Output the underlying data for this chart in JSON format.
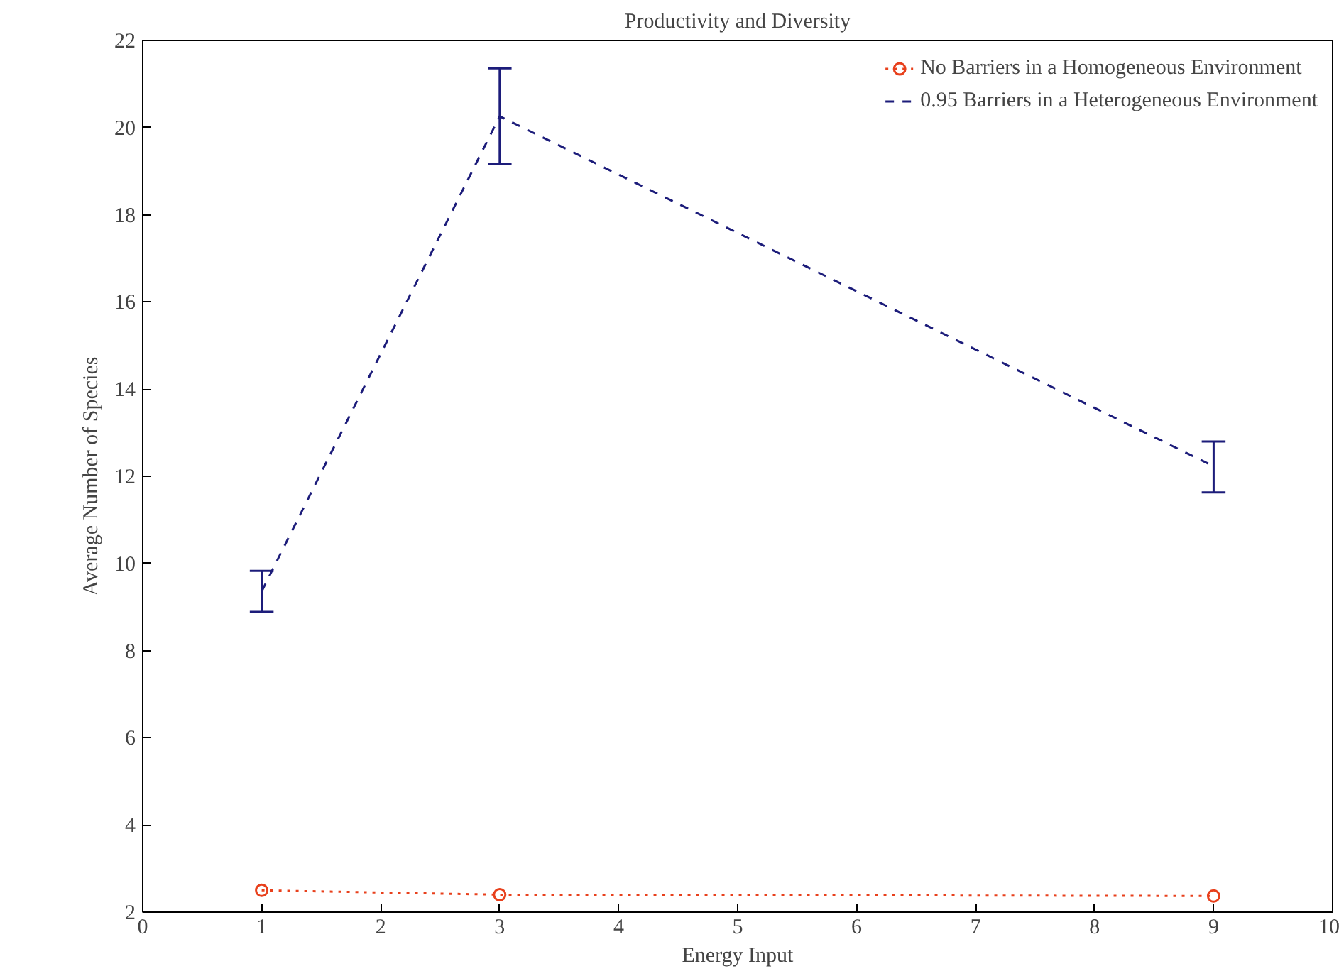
{
  "chart_data": {
    "type": "line",
    "title": "Productivity and Diversity",
    "xlabel": "Energy Input",
    "ylabel": "Average Number of Species",
    "x": [
      1,
      3,
      9
    ],
    "series": [
      {
        "name": "No Barriers in a Homogeneous Environment",
        "color": "#e8401c",
        "values": [
          2.5,
          2.4,
          2.37
        ],
        "marker": "circle",
        "line_style": "dotted"
      },
      {
        "name": "0.95 Barriers in a Heterogeneous Environment",
        "color": "#1c1c7a",
        "values": [
          9.36,
          20.26,
          12.23
        ],
        "errors": [
          [
            8.89,
            9.83
          ],
          [
            19.16,
            21.36
          ],
          [
            11.63,
            12.8
          ]
        ],
        "marker": "none",
        "line_style": "dashed"
      }
    ],
    "xlim": [
      0,
      10
    ],
    "xticks": [
      0,
      1,
      2,
      3,
      4,
      5,
      6,
      7,
      8,
      9,
      10
    ],
    "ylim": [
      2,
      22
    ],
    "yticks": [
      2,
      4,
      6,
      8,
      10,
      12,
      14,
      16,
      18,
      20,
      22
    ],
    "grid": false,
    "legend": "top right"
  }
}
